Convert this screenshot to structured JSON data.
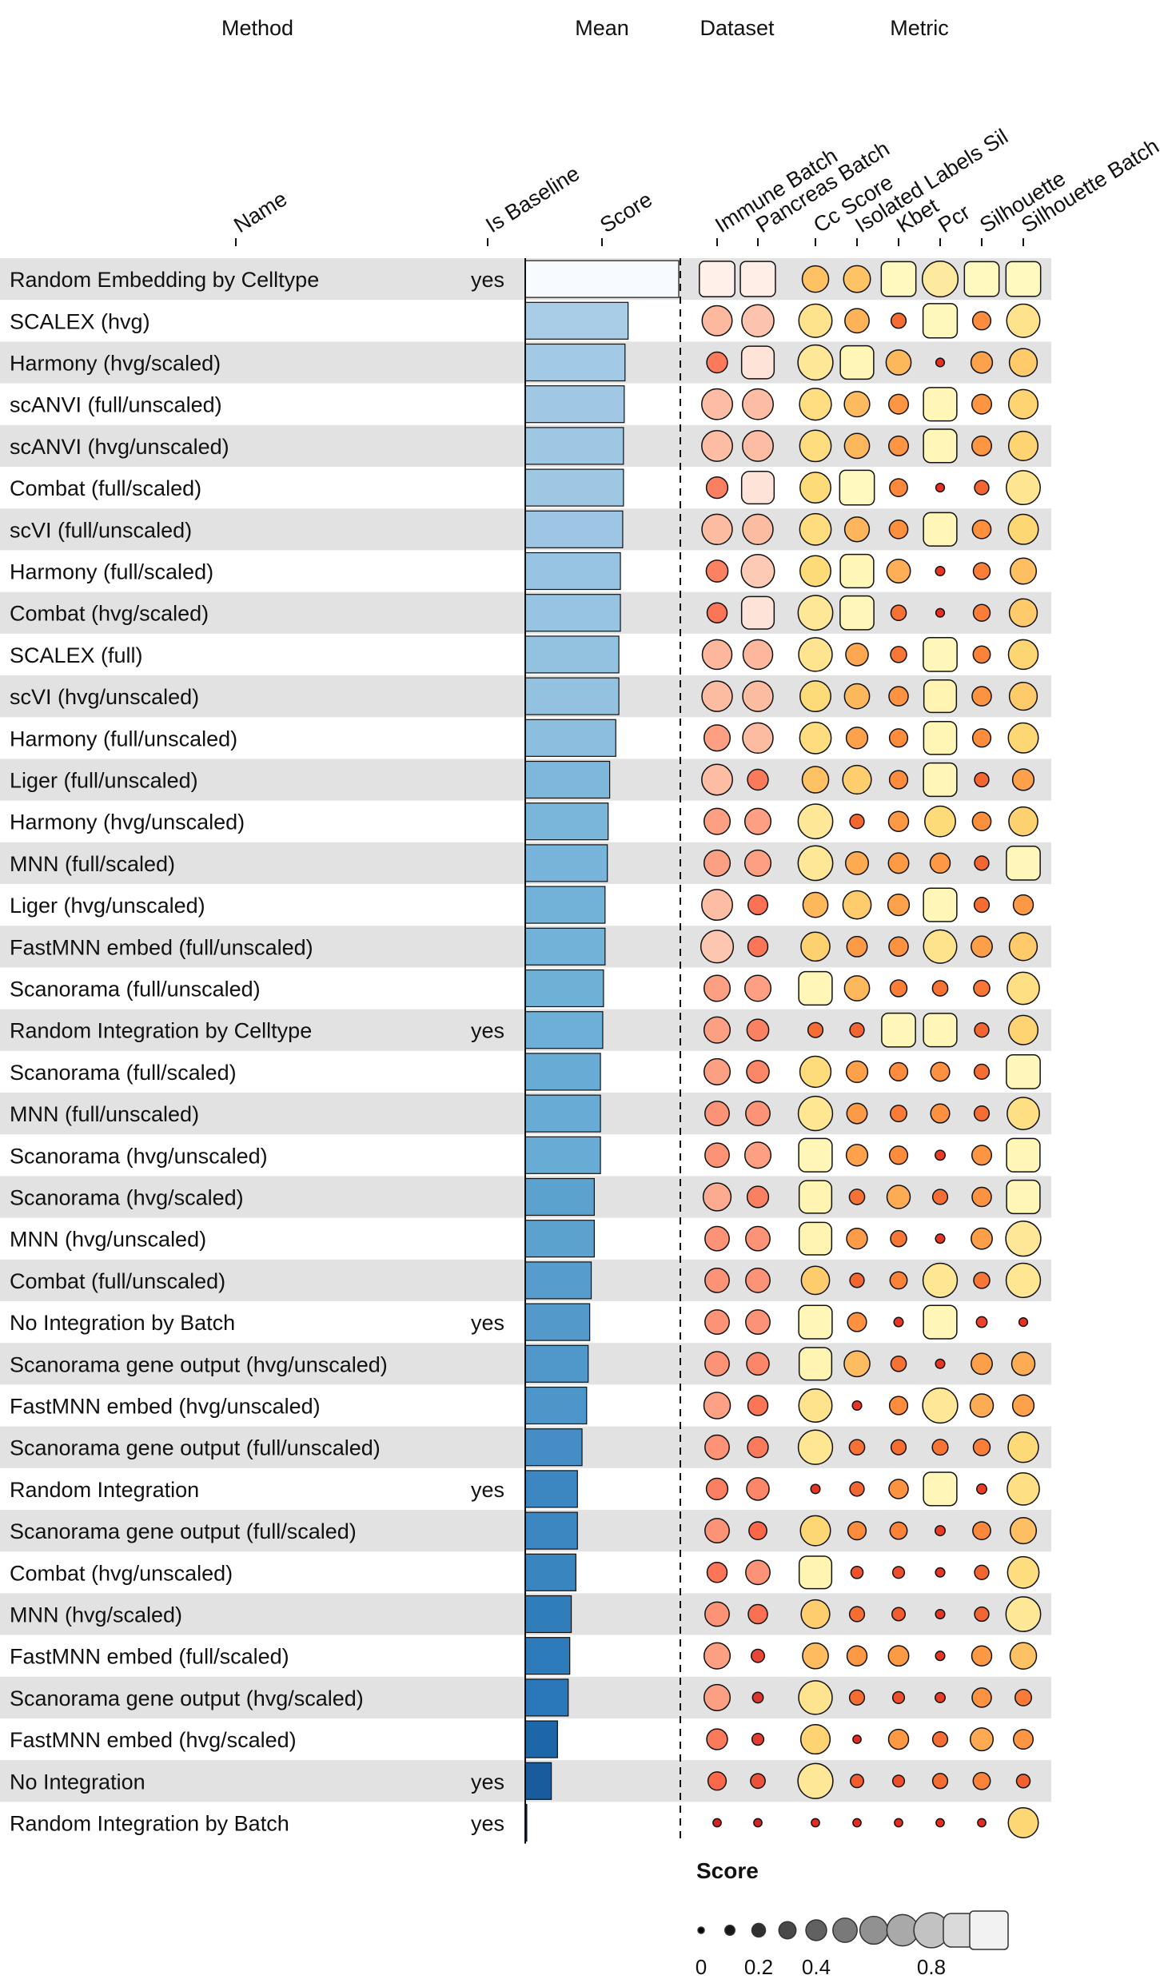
{
  "chart_data": {
    "type": "table",
    "group_headers": [
      "Method",
      "Mean",
      "Dataset",
      "Metric"
    ],
    "column_labels": {
      "name": "Name",
      "is_baseline": "Is Baseline",
      "score": "Score",
      "datasets": [
        "Immune Batch",
        "Pancreas Batch"
      ],
      "metrics": [
        "Cc Score",
        "Isolated Labels Sil",
        "Kbet",
        "Pcr",
        "Silhouette",
        "Silhouette Batch"
      ]
    },
    "score_range": [
      0,
      1
    ],
    "rows": [
      {
        "name": "Random Embedding by Celltype",
        "baseline": "yes",
        "score": 1.0,
        "datasets": [
          0.97,
          0.96
        ],
        "metrics": [
          0.56,
          0.57,
          0.95,
          0.82,
          0.95,
          0.95
        ]
      },
      {
        "name": "SCALEX (hvg)",
        "baseline": "",
        "score": 0.67,
        "datasets": [
          0.66,
          0.72
        ],
        "metrics": [
          0.75,
          0.5,
          0.24,
          0.94,
          0.33,
          0.75
        ]
      },
      {
        "name": "Harmony (hvg/scaled)",
        "baseline": "",
        "score": 0.65,
        "datasets": [
          0.4,
          0.9
        ],
        "metrics": [
          0.8,
          0.92,
          0.52,
          0.06,
          0.42,
          0.6
        ]
      },
      {
        "name": "scANVI (full/unscaled)",
        "baseline": "",
        "score": 0.645,
        "datasets": [
          0.68,
          0.68
        ],
        "metrics": [
          0.71,
          0.53,
          0.37,
          0.92,
          0.37,
          0.64
        ]
      },
      {
        "name": "scANVI (hvg/unscaled)",
        "baseline": "",
        "score": 0.64,
        "datasets": [
          0.68,
          0.68
        ],
        "metrics": [
          0.7,
          0.52,
          0.37,
          0.92,
          0.37,
          0.64
        ]
      },
      {
        "name": "Combat (full/scaled)",
        "baseline": "",
        "score": 0.64,
        "datasets": [
          0.42,
          0.9
        ],
        "metrics": [
          0.68,
          0.95,
          0.32,
          0.06,
          0.22,
          0.77
        ]
      },
      {
        "name": "scVI (full/unscaled)",
        "baseline": "",
        "score": 0.635,
        "datasets": [
          0.67,
          0.67
        ],
        "metrics": [
          0.7,
          0.51,
          0.34,
          0.92,
          0.34,
          0.66
        ]
      },
      {
        "name": "Harmony (full/scaled)",
        "baseline": "",
        "score": 0.62,
        "datasets": [
          0.43,
          0.75
        ],
        "metrics": [
          0.68,
          0.92,
          0.48,
          0.08,
          0.29,
          0.55
        ]
      },
      {
        "name": "Combat (hvg/scaled)",
        "baseline": "",
        "score": 0.62,
        "datasets": [
          0.38,
          0.9
        ],
        "metrics": [
          0.79,
          0.93,
          0.25,
          0.06,
          0.29,
          0.6
        ]
      },
      {
        "name": "SCALEX (full)",
        "baseline": "",
        "score": 0.61,
        "datasets": [
          0.65,
          0.65
        ],
        "metrics": [
          0.76,
          0.45,
          0.27,
          0.93,
          0.3,
          0.65
        ]
      },
      {
        "name": "scVI (hvg/unscaled)",
        "baseline": "",
        "score": 0.61,
        "datasets": [
          0.67,
          0.67
        ],
        "metrics": [
          0.68,
          0.52,
          0.36,
          0.9,
          0.36,
          0.6
        ]
      },
      {
        "name": "Harmony (full/unscaled)",
        "baseline": "",
        "score": 0.59,
        "datasets": [
          0.55,
          0.67
        ],
        "metrics": [
          0.7,
          0.42,
          0.33,
          0.91,
          0.33,
          0.66
        ]
      },
      {
        "name": "Liger (full/unscaled)",
        "baseline": "",
        "score": 0.55,
        "datasets": [
          0.68,
          0.4
        ],
        "metrics": [
          0.56,
          0.62,
          0.33,
          0.92,
          0.22,
          0.42
        ]
      },
      {
        "name": "Harmony (hvg/unscaled)",
        "baseline": "",
        "score": 0.54,
        "datasets": [
          0.55,
          0.55
        ],
        "metrics": [
          0.79,
          0.22,
          0.38,
          0.68,
          0.34,
          0.63
        ]
      },
      {
        "name": "MNN (full/scaled)",
        "baseline": "",
        "score": 0.535,
        "datasets": [
          0.55,
          0.55
        ],
        "metrics": [
          0.79,
          0.46,
          0.39,
          0.38,
          0.22,
          0.93
        ]
      },
      {
        "name": "Liger (hvg/unscaled)",
        "baseline": "",
        "score": 0.52,
        "datasets": [
          0.68,
          0.37
        ],
        "metrics": [
          0.52,
          0.61,
          0.42,
          0.92,
          0.24,
          0.38
        ]
      },
      {
        "name": "FastMNN embed (full/unscaled)",
        "baseline": "",
        "score": 0.52,
        "datasets": [
          0.73,
          0.38
        ],
        "metrics": [
          0.63,
          0.39,
          0.36,
          0.75,
          0.41,
          0.6
        ]
      },
      {
        "name": "Scanorama (full/unscaled)",
        "baseline": "",
        "score": 0.51,
        "datasets": [
          0.55,
          0.55
        ],
        "metrics": [
          0.92,
          0.52,
          0.29,
          0.25,
          0.27,
          0.72
        ]
      },
      {
        "name": "Random Integration by Celltype",
        "baseline": "yes",
        "score": 0.505,
        "datasets": [
          0.55,
          0.43
        ],
        "metrics": [
          0.24,
          0.22,
          0.93,
          0.92,
          0.22,
          0.64
        ]
      },
      {
        "name": "Scanorama (full/scaled)",
        "baseline": "",
        "score": 0.49,
        "datasets": [
          0.55,
          0.45
        ],
        "metrics": [
          0.69,
          0.42,
          0.33,
          0.35,
          0.24,
          0.93
        ]
      },
      {
        "name": "MNN (full/unscaled)",
        "baseline": "",
        "score": 0.49,
        "datasets": [
          0.5,
          0.5
        ],
        "metrics": [
          0.78,
          0.39,
          0.28,
          0.35,
          0.24,
          0.72
        ]
      },
      {
        "name": "Scanorama (hvg/unscaled)",
        "baseline": "",
        "score": 0.49,
        "datasets": [
          0.5,
          0.55
        ],
        "metrics": [
          0.92,
          0.42,
          0.33,
          0.1,
          0.37,
          0.92
        ]
      },
      {
        "name": "Scanorama (hvg/scaled)",
        "baseline": "",
        "score": 0.45,
        "datasets": [
          0.6,
          0.42
        ],
        "metrics": [
          0.9,
          0.25,
          0.47,
          0.24,
          0.36,
          0.92
        ]
      },
      {
        "name": "MNN (hvg/unscaled)",
        "baseline": "",
        "score": 0.45,
        "datasets": [
          0.5,
          0.5
        ],
        "metrics": [
          0.9,
          0.4,
          0.27,
          0.08,
          0.41,
          0.8
        ]
      },
      {
        "name": "Combat (full/unscaled)",
        "baseline": "",
        "score": 0.43,
        "datasets": [
          0.5,
          0.5
        ],
        "metrics": [
          0.61,
          0.22,
          0.3,
          0.78,
          0.27,
          0.78
        ]
      },
      {
        "name": "No Integration by Batch",
        "baseline": "yes",
        "score": 0.42,
        "datasets": [
          0.5,
          0.5
        ],
        "metrics": [
          0.92,
          0.35,
          0.08,
          0.92,
          0.12,
          0.06
        ]
      },
      {
        "name": "Scanorama gene output (hvg/unscaled)",
        "baseline": "",
        "score": 0.41,
        "datasets": [
          0.5,
          0.45
        ],
        "metrics": [
          0.9,
          0.54,
          0.25,
          0.08,
          0.41,
          0.47
        ]
      },
      {
        "name": "FastMNN embed (hvg/unscaled)",
        "baseline": "",
        "score": 0.4,
        "datasets": [
          0.56,
          0.38
        ],
        "metrics": [
          0.75,
          0.08,
          0.33,
          0.8,
          0.47,
          0.42
        ]
      },
      {
        "name": "Scanorama gene output (full/unscaled)",
        "baseline": "",
        "score": 0.37,
        "datasets": [
          0.5,
          0.4
        ],
        "metrics": [
          0.78,
          0.25,
          0.24,
          0.26,
          0.29,
          0.67
        ]
      },
      {
        "name": "Random Integration",
        "baseline": "yes",
        "score": 0.34,
        "datasets": [
          0.42,
          0.45
        ],
        "metrics": [
          0.08,
          0.22,
          0.36,
          0.92,
          0.1,
          0.72
        ]
      },
      {
        "name": "Scanorama gene output (full/scaled)",
        "baseline": "",
        "score": 0.34,
        "datasets": [
          0.5,
          0.32
        ],
        "metrics": [
          0.66,
          0.33,
          0.3,
          0.1,
          0.32,
          0.55
        ]
      },
      {
        "name": "Combat (hvg/unscaled)",
        "baseline": "",
        "score": 0.33,
        "datasets": [
          0.38,
          0.5
        ],
        "metrics": [
          0.9,
          0.16,
          0.15,
          0.08,
          0.22,
          0.7
        ]
      },
      {
        "name": "MNN (hvg/scaled)",
        "baseline": "",
        "score": 0.3,
        "datasets": [
          0.5,
          0.36
        ],
        "metrics": [
          0.62,
          0.24,
          0.19,
          0.08,
          0.22,
          0.79
        ]
      },
      {
        "name": "FastMNN embed (full/scaled)",
        "baseline": "",
        "score": 0.29,
        "datasets": [
          0.55,
          0.19
        ],
        "metrics": [
          0.54,
          0.38,
          0.39,
          0.08,
          0.38,
          0.56
        ]
      },
      {
        "name": "Scanorama gene output (hvg/scaled)",
        "baseline": "",
        "score": 0.28,
        "datasets": [
          0.55,
          0.12
        ],
        "metrics": [
          0.76,
          0.24,
          0.15,
          0.1,
          0.36,
          0.28
        ]
      },
      {
        "name": "FastMNN embed (hvg/scaled)",
        "baseline": "",
        "score": 0.21,
        "datasets": [
          0.4,
          0.15
        ],
        "metrics": [
          0.64,
          0.05,
          0.38,
          0.24,
          0.46,
          0.37
        ]
      },
      {
        "name": "No Integration",
        "baseline": "yes",
        "score": 0.17,
        "datasets": [
          0.33,
          0.23
        ],
        "metrics": [
          0.8,
          0.19,
          0.15,
          0.24,
          0.3,
          0.2
        ]
      },
      {
        "name": "Random Integration by Batch",
        "baseline": "yes",
        "score": 0.01,
        "datasets": [
          0.05,
          0.05
        ],
        "metrics": [
          0.05,
          0.05,
          0.05,
          0.05,
          0.05,
          0.66
        ]
      }
    ],
    "legend": {
      "title": "Score",
      "tick_labels": [
        "0",
        "0.2",
        "0.4",
        "0.8"
      ],
      "tick_values": [
        0,
        0.2,
        0.4,
        0.8
      ],
      "values": [
        0.0,
        0.1,
        0.2,
        0.3,
        0.4,
        0.5,
        0.6,
        0.7,
        0.8,
        0.9,
        1.0
      ]
    },
    "colors": {
      "row_stripe": "#e2e2e2",
      "bar_scale": [
        "#f7fbff",
        "#c6dbef",
        "#6baed6",
        "#2171b5",
        "#08306b"
      ],
      "dataset_scale": [
        "#fff5f0",
        "#fcbba1",
        "#fb6a4a",
        "#cb181d"
      ],
      "metric_scale": [
        "#ffffcc",
        "#fed976",
        "#fd8d3c",
        "#e31a1c"
      ],
      "legend_scale": [
        "#000000",
        "#f2f2f2"
      ]
    }
  }
}
